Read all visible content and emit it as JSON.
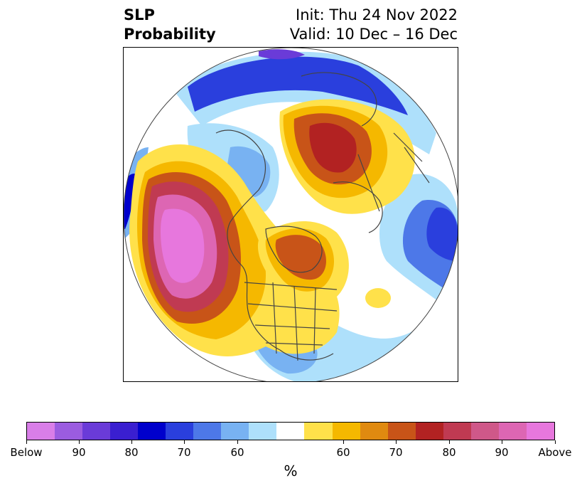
{
  "title": {
    "left_line1": "SLP",
    "left_line2": "Probability",
    "right_line1": "Init: Thu 24 Nov 2022",
    "right_line2": "Valid: 10 Dec – 16 Dec"
  },
  "colorbar": {
    "unit": "%",
    "colors": [
      "#d97ee8",
      "#9b5ce0",
      "#6a3bd8",
      "#3a1fd0",
      "#0000cc",
      "#2a3fdd",
      "#4d78e8",
      "#78b2f2",
      "#aee0fb",
      "#ffffff",
      "#ffe14a",
      "#f5b800",
      "#e08a10",
      "#c85418",
      "#b22222",
      "#c03a52",
      "#cf5889",
      "#dd66b3",
      "#e777dd"
    ],
    "ticks": [
      "Below",
      "90",
      "80",
      "70",
      "60",
      "60",
      "70",
      "80",
      "90",
      "Above"
    ]
  }
}
